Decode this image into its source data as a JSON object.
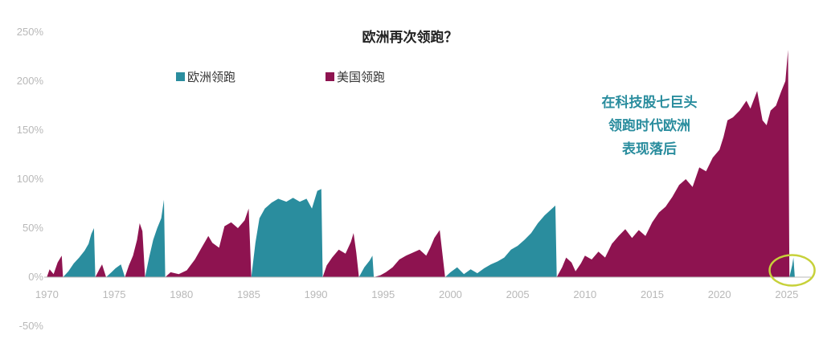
{
  "chart_data": {
    "type": "area",
    "title": "欧洲再次领跑？",
    "xlabel": "",
    "ylabel": "",
    "xlim": [
      1969.8,
      2026.8
    ],
    "ylim": [
      -50,
      250
    ],
    "y_ticks": [
      -50,
      0,
      50,
      100,
      150,
      200,
      250
    ],
    "y_tick_labels": [
      "-50%",
      "0%",
      "50%",
      "100%",
      "150%",
      "200%",
      "250%"
    ],
    "x_ticks": [
      1970,
      1975,
      1980,
      1985,
      1990,
      1995,
      2000,
      2005,
      2010,
      2015,
      2020,
      2025
    ],
    "x_tick_labels": [
      "1970",
      "1975",
      "1980",
      "1985",
      "1990",
      "1995",
      "2000",
      "2005",
      "2010",
      "2015",
      "2020",
      "2025"
    ],
    "grid": false,
    "legend": {
      "position": "top-left"
    },
    "colors": {
      "europe": "#2a8d9e",
      "us": "#8e1350",
      "highlight": "#c7d13a",
      "annotation": "#2a8d9e"
    },
    "series": [
      {
        "name": "欧洲领跑",
        "key": "europe",
        "segments": [
          [
            [
              1971.2,
              0
            ],
            [
              1971.6,
              6
            ],
            [
              1972.0,
              14
            ],
            [
              1972.4,
              20
            ],
            [
              1972.8,
              27
            ],
            [
              1973.1,
              34
            ],
            [
              1973.3,
              44
            ],
            [
              1973.5,
              50
            ],
            [
              1973.6,
              0
            ]
          ],
          [
            [
              1974.4,
              0
            ],
            [
              1974.8,
              5
            ],
            [
              1975.1,
              9
            ],
            [
              1975.5,
              13
            ],
            [
              1975.8,
              0
            ]
          ],
          [
            [
              1977.3,
              0
            ],
            [
              1977.6,
              20
            ],
            [
              1977.9,
              38
            ],
            [
              1978.2,
              50
            ],
            [
              1978.5,
              60
            ],
            [
              1978.7,
              79
            ],
            [
              1978.8,
              0
            ]
          ],
          [
            [
              1985.2,
              0
            ],
            [
              1985.5,
              35
            ],
            [
              1985.8,
              60
            ],
            [
              1986.2,
              70
            ],
            [
              1986.7,
              76
            ],
            [
              1987.2,
              80
            ],
            [
              1987.8,
              77
            ],
            [
              1988.3,
              81
            ],
            [
              1988.8,
              77
            ],
            [
              1989.3,
              80
            ],
            [
              1989.7,
              70
            ],
            [
              1990.1,
              88
            ],
            [
              1990.4,
              90
            ],
            [
              1990.5,
              0
            ]
          ],
          [
            [
              1993.2,
              0
            ],
            [
              1993.6,
              10
            ],
            [
              1994.0,
              17
            ],
            [
              1994.2,
              22
            ],
            [
              1994.3,
              0
            ]
          ],
          [
            [
              1999.6,
              0
            ],
            [
              2000.0,
              5
            ],
            [
              2000.5,
              10
            ],
            [
              2001.0,
              3
            ],
            [
              2001.5,
              8
            ],
            [
              2002.0,
              4
            ],
            [
              2002.5,
              9
            ],
            [
              2003.0,
              13
            ],
            [
              2003.5,
              16
            ],
            [
              2004.0,
              20
            ],
            [
              2004.5,
              28
            ],
            [
              2005.0,
              32
            ],
            [
              2005.5,
              38
            ],
            [
              2006.0,
              45
            ],
            [
              2006.5,
              55
            ],
            [
              2007.0,
              63
            ],
            [
              2007.4,
              68
            ],
            [
              2007.8,
              73
            ],
            [
              2007.9,
              0
            ]
          ],
          [
            [
              2025.2,
              0
            ],
            [
              2025.4,
              12
            ],
            [
              2025.5,
              20
            ],
            [
              2025.6,
              0
            ]
          ]
        ]
      },
      {
        "name": "美国领跑",
        "key": "us",
        "segments": [
          [
            [
              1970.0,
              0
            ],
            [
              1970.2,
              8
            ],
            [
              1970.5,
              3
            ],
            [
              1970.8,
              15
            ],
            [
              1971.1,
              22
            ],
            [
              1971.2,
              0
            ]
          ],
          [
            [
              1973.6,
              0
            ],
            [
              1973.9,
              8
            ],
            [
              1974.1,
              13
            ],
            [
              1974.4,
              0
            ]
          ],
          [
            [
              1975.8,
              0
            ],
            [
              1976.1,
              12
            ],
            [
              1976.4,
              22
            ],
            [
              1976.7,
              38
            ],
            [
              1976.9,
              55
            ],
            [
              1977.1,
              47
            ],
            [
              1977.3,
              0
            ]
          ],
          [
            [
              1978.8,
              0
            ],
            [
              1979.2,
              5
            ],
            [
              1979.8,
              3
            ],
            [
              1980.4,
              7
            ],
            [
              1981.0,
              18
            ],
            [
              1981.5,
              30
            ],
            [
              1982.0,
              42
            ],
            [
              1982.3,
              35
            ],
            [
              1982.8,
              30
            ],
            [
              1983.2,
              52
            ],
            [
              1983.7,
              56
            ],
            [
              1984.2,
              50
            ],
            [
              1984.7,
              58
            ],
            [
              1985.0,
              70
            ],
            [
              1985.2,
              0
            ]
          ],
          [
            [
              1990.5,
              0
            ],
            [
              1990.8,
              12
            ],
            [
              1991.2,
              20
            ],
            [
              1991.7,
              28
            ],
            [
              1992.2,
              24
            ],
            [
              1992.6,
              36
            ],
            [
              1992.8,
              45
            ],
            [
              1993.0,
              25
            ],
            [
              1993.2,
              0
            ]
          ],
          [
            [
              1994.3,
              0
            ],
            [
              1994.8,
              2
            ],
            [
              1995.2,
              5
            ],
            [
              1995.7,
              10
            ],
            [
              1996.2,
              18
            ],
            [
              1996.7,
              22
            ],
            [
              1997.2,
              25
            ],
            [
              1997.7,
              28
            ],
            [
              1998.2,
              22
            ],
            [
              1998.5,
              30
            ],
            [
              1998.8,
              40
            ],
            [
              1999.2,
              48
            ],
            [
              1999.6,
              0
            ]
          ],
          [
            [
              2007.9,
              0
            ],
            [
              2008.3,
              10
            ],
            [
              2008.6,
              20
            ],
            [
              2009.0,
              15
            ],
            [
              2009.3,
              6
            ],
            [
              2009.7,
              14
            ],
            [
              2010.0,
              22
            ],
            [
              2010.5,
              18
            ],
            [
              2011.0,
              26
            ],
            [
              2011.5,
              20
            ],
            [
              2012.0,
              34
            ],
            [
              2012.5,
              42
            ],
            [
              2013.0,
              49
            ],
            [
              2013.5,
              40
            ],
            [
              2014.0,
              48
            ],
            [
              2014.5,
              42
            ],
            [
              2015.0,
              56
            ],
            [
              2015.5,
              66
            ],
            [
              2016.0,
              72
            ],
            [
              2016.5,
              82
            ],
            [
              2017.0,
              94
            ],
            [
              2017.5,
              100
            ],
            [
              2018.0,
              92
            ],
            [
              2018.5,
              112
            ],
            [
              2019.0,
              108
            ],
            [
              2019.5,
              122
            ],
            [
              2020.0,
              130
            ],
            [
              2020.3,
              143
            ],
            [
              2020.6,
              160
            ],
            [
              2021.0,
              163
            ],
            [
              2021.5,
              170
            ],
            [
              2022.0,
              180
            ],
            [
              2022.3,
              172
            ],
            [
              2022.8,
              190
            ],
            [
              2023.2,
              160
            ],
            [
              2023.5,
              155
            ],
            [
              2023.8,
              170
            ],
            [
              2024.2,
              175
            ],
            [
              2024.6,
              190
            ],
            [
              2024.9,
              200
            ],
            [
              2025.1,
              232
            ],
            [
              2025.2,
              0
            ]
          ]
        ]
      }
    ],
    "annotation": {
      "lines": [
        "在科技股七巨头",
        "领跑时代欧洲",
        "表现落后"
      ]
    },
    "highlight_year": 2025.4
  }
}
